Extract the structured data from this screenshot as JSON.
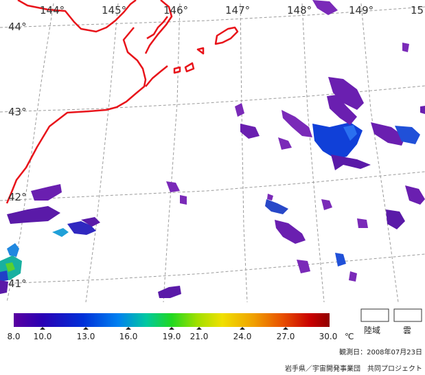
{
  "map": {
    "lon_labels": [
      "144°",
      "145°",
      "146°",
      "147°",
      "148°",
      "149°",
      "15"
    ],
    "lat_labels": [
      "44°",
      "43°",
      "42°",
      "41°"
    ],
    "colors": {
      "coast": "#e8131a",
      "grid": "#9a9a9a"
    }
  },
  "legend": {
    "scale_ticks": [
      "8.0",
      "10.0",
      "13.0",
      "16.0",
      "19.0",
      "21.0",
      "24.0",
      "27.0",
      "30.0"
    ],
    "unit": "℃",
    "land_label": "陸域",
    "cloud_label": "雲",
    "observation_date": "観測日：2008年07月23日",
    "credit": "岩手県／宇宙開発事業団　共同プロジェクト",
    "gradient_colors": [
      "#5a00a0",
      "#2a00b4",
      "#0030d8",
      "#0080f0",
      "#00c8a0",
      "#20d820",
      "#a0e000",
      "#f0e000",
      "#f0a000",
      "#e85000",
      "#c80000",
      "#900000"
    ]
  }
}
